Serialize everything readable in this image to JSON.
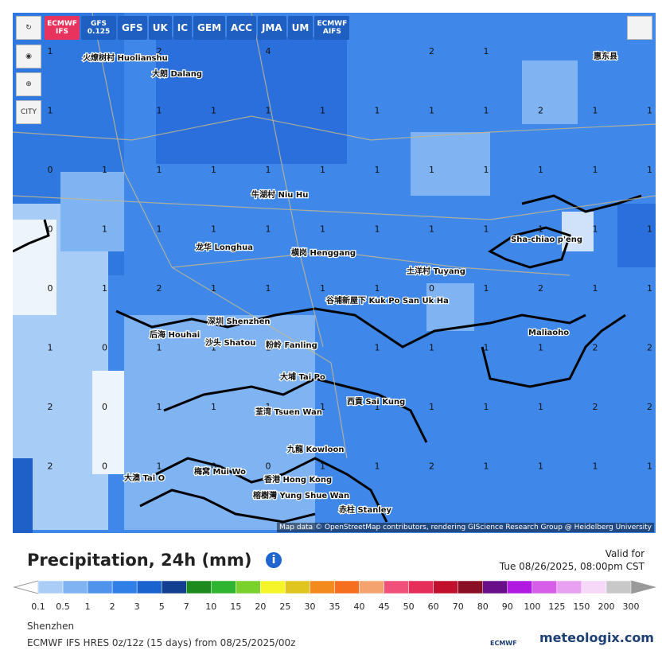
{
  "toolbar": {
    "models": [
      "ECMWF IFS",
      "GFS 0.125",
      "GFS",
      "UK",
      "IC",
      "GEM",
      "ACC",
      "JMA",
      "UM",
      "ECMWF AIFS"
    ],
    "city": "CITY"
  },
  "places": [
    "火燎树村 Huolianshu",
    "大朗 Dalang",
    "龙华 Longhua",
    "横岗 Henggang",
    "土洋村 Tuyang",
    "深圳 Shenzhen",
    "后海 Houhai",
    "沙头 Shatou",
    "粉岭 Fanling",
    "大埔 Tai Po",
    "九龍 Kowloon",
    "香港 Hong Kong",
    "荃湾 Tsuen Wan",
    "西貢 Sai Kung",
    "Maliaoho",
    "Sha-chiao p'eng",
    "惠东县",
    "牛湖村 Niu Hu",
    "谷埔新屋下 Kuk Po San Uk Ha",
    "赤柱 Stanley",
    "榕樹灣 Yung Shue Wan",
    "梅窝 Mui Wo",
    "大澳 Tai O"
  ],
  "precip_grid": [
    [
      1,
      null,
      2,
      null,
      4,
      null,
      null,
      2,
      1,
      null,
      null,
      null
    ],
    [
      1,
      null,
      1,
      1,
      1,
      1,
      1,
      1,
      1,
      2,
      1,
      1
    ],
    [
      0,
      1,
      1,
      1,
      1,
      1,
      1,
      1,
      1,
      1,
      1,
      1
    ],
    [
      0,
      1,
      1,
      1,
      1,
      1,
      1,
      1,
      1,
      1,
      1,
      1
    ],
    [
      0,
      1,
      2,
      1,
      1,
      1,
      1,
      0,
      1,
      2,
      1,
      1
    ],
    [
      1,
      0,
      1,
      1,
      1,
      null,
      1,
      1,
      1,
      1,
      2,
      2
    ],
    [
      2,
      0,
      1,
      1,
      1,
      1,
      1,
      1,
      1,
      1,
      2,
      2
    ],
    [
      2,
      0,
      1,
      0,
      0,
      1,
      1,
      2,
      1,
      1,
      1,
      1
    ]
  ],
  "attribution": "Map data © OpenStreetMap contributors, rendering GIScience Research Group @ Heidelberg University",
  "legend": {
    "title": "Precipitation, 24h (mm)",
    "ticks": [
      0.1,
      0.5,
      1,
      2,
      3,
      5,
      7,
      10,
      15,
      20,
      25,
      30,
      35,
      40,
      45,
      50,
      60,
      70,
      80,
      90,
      100,
      125,
      150,
      200,
      300
    ],
    "colors": [
      "#a9cdf7",
      "#7fb3f2",
      "#4f93ec",
      "#2f7fe6",
      "#1a63cf",
      "#123f8f",
      "#1c8a1c",
      "#2fb52f",
      "#7ad12b",
      "#f5f52a",
      "#e0c51e",
      "#f28a1e",
      "#f56f1e",
      "#f5a36e",
      "#f0507a",
      "#e62e5a",
      "#c0102e",
      "#8a0f24",
      "#6a0f8a",
      "#b11ae0",
      "#d65ee8",
      "#e8a0f0",
      "#f6d9f8",
      "#c8c8c8"
    ],
    "low_color": "#ffffff",
    "high_color": "#999999"
  },
  "valid": {
    "label": "Valid for",
    "time": "Tue 08/26/2025, 08:00pm CST"
  },
  "footer": {
    "location": "Shenzhen",
    "model": "ECMWF IFS HRES 0z/12z (15 days) from 08/25/2025/00z",
    "logo": "ECMWF",
    "brand": "meteologix.com"
  }
}
